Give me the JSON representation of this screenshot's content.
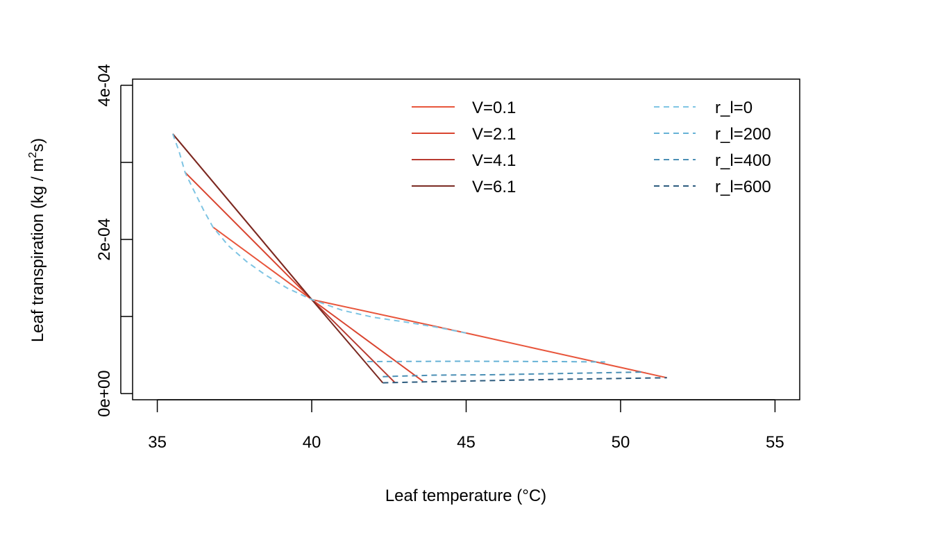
{
  "chart_data": {
    "type": "line",
    "xlabel": "Leaf temperature (°C)",
    "ylabel_main": "Leaf transpiration (kg / m",
    "ylabel_sup": "2",
    "ylabel_end": "s)",
    "xlim": [
      34.2,
      55.8
    ],
    "ylim": [
      -8e-06,
      0.000408
    ],
    "x_ticks": [
      35,
      40,
      45,
      50,
      55
    ],
    "x_tick_labels": [
      "35",
      "40",
      "45",
      "50",
      "55"
    ],
    "y_ticks": [
      0,
      0.0001,
      0.0002,
      0.0003,
      0.0004
    ],
    "y_tick_labels": [
      "0e+00",
      "",
      "2e-04",
      "",
      "4e-04"
    ],
    "colors": {
      "V=0.1": "#e8553b",
      "V=2.1": "#d9442f",
      "V=4.1": "#b83a30",
      "V=6.1": "#7a2a22",
      "r_l=0": "#7ec4e3",
      "r_l=200": "#66b2d6",
      "r_l=400": "#4a8fb5",
      "r_l=600": "#2c5b7e"
    },
    "series": [
      {
        "name": "V=0.1",
        "style": "solid",
        "points": [
          [
            36.8,
            0.000216
          ],
          [
            40.0,
            0.000122
          ],
          [
            45.0,
            7.85e-05
          ],
          [
            51.5,
            2.05e-05
          ]
        ]
      },
      {
        "name": "V=2.1",
        "style": "solid",
        "points": [
          [
            35.9,
            0.000287
          ],
          [
            40.0,
            0.000122
          ],
          [
            43.6,
            1.6e-05
          ]
        ]
      },
      {
        "name": "V=4.1",
        "style": "solid",
        "points": [
          [
            35.5,
            0.000337
          ],
          [
            40.0,
            0.000122
          ],
          [
            42.7,
            1.4e-05
          ]
        ]
      },
      {
        "name": "V=6.1",
        "style": "solid",
        "points": [
          [
            35.5,
            0.000337
          ],
          [
            40.0,
            0.000122
          ],
          [
            42.3,
            1.4e-05
          ]
        ]
      },
      {
        "name": "r_l=0",
        "style": "dashed",
        "points": [
          [
            35.5,
            0.000337
          ],
          [
            35.7,
            0.000315
          ],
          [
            35.9,
            0.000287
          ],
          [
            36.2,
            0.000262
          ],
          [
            36.5,
            0.000238
          ],
          [
            36.8,
            0.000216
          ],
          [
            37.3,
            0.000192
          ],
          [
            37.9,
            0.000171
          ],
          [
            38.5,
            0.000154
          ],
          [
            39.2,
            0.000137
          ],
          [
            40.0,
            0.000122
          ],
          [
            41.0,
            0.000108
          ],
          [
            42.0,
            9.9e-05
          ],
          [
            43.0,
            9.3e-05
          ],
          [
            44.0,
            8.65e-05
          ],
          [
            45.0,
            7.85e-05
          ]
        ]
      },
      {
        "name": "r_l=200",
        "style": "dashed",
        "points": [
          [
            41.8,
            4.15e-05
          ],
          [
            45.0,
            4.2e-05
          ],
          [
            48.0,
            4.15e-05
          ],
          [
            49.5,
            4.1e-05
          ]
        ]
      },
      {
        "name": "r_l=400",
        "style": "dashed",
        "points": [
          [
            42.3,
            2.2e-05
          ],
          [
            44.0,
            2.4e-05
          ],
          [
            46.0,
            2.45e-05
          ],
          [
            48.0,
            2.6e-05
          ],
          [
            50.8,
            2.8e-05
          ]
        ]
      },
      {
        "name": "r_l=600",
        "style": "dashed",
        "points": [
          [
            42.3,
            1.4e-05
          ],
          [
            44.0,
            1.55e-05
          ],
          [
            46.0,
            1.7e-05
          ],
          [
            48.0,
            1.85e-05
          ],
          [
            51.5,
            2.05e-05
          ]
        ]
      }
    ],
    "legend_left": [
      "V=0.1",
      "V=2.1",
      "V=4.1",
      "V=6.1"
    ],
    "legend_right": [
      "r_l=0",
      "r_l=200",
      "r_l=400",
      "r_l=600"
    ]
  }
}
